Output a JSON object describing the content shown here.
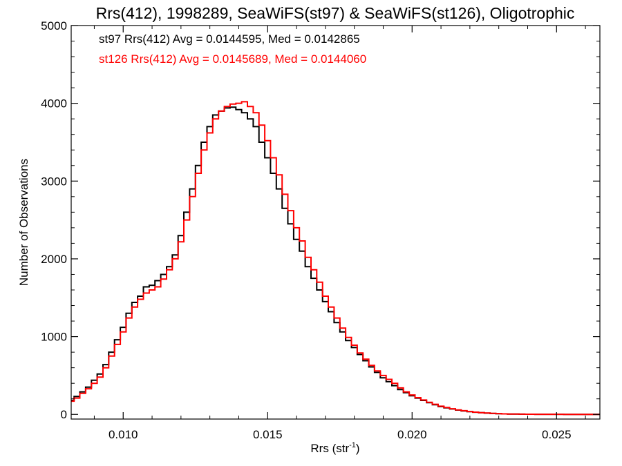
{
  "chart_data": {
    "type": "line",
    "title": "Rrs(412), 1998289, SeaWiFS(st97) & SeaWiFS(st126), Oligotrophic",
    "xlabel": "Rrs (str",
    "xlabel_sup": "-1",
    "xlabel_close": ")",
    "ylabel": "Number of Observations",
    "xlim": [
      0.0082,
      0.0265
    ],
    "ylim": [
      -60,
      5000
    ],
    "x_ticks": [
      0.01,
      0.015,
      0.02,
      0.025
    ],
    "x_tick_labels": [
      "0.010",
      "0.015",
      "0.020",
      "0.025"
    ],
    "y_ticks": [
      0,
      1000,
      2000,
      3000,
      4000,
      5000
    ],
    "y_tick_labels": [
      "0",
      "1000",
      "2000",
      "3000",
      "4000",
      "5000"
    ],
    "annotations": [
      {
        "text": "st97 Rrs(412) Avg = 0.0144595, Med = 0.0142865",
        "color": "#000000"
      },
      {
        "text": "st126 Rrs(412) Avg = 0.0145689, Med = 0.0144060",
        "color": "#ff0000"
      }
    ],
    "series": [
      {
        "color": "#000000",
        "points": [
          [
            0.0082,
            180
          ],
          [
            0.0084,
            230
          ],
          [
            0.0086,
            290
          ],
          [
            0.0088,
            350
          ],
          [
            0.009,
            440
          ],
          [
            0.0092,
            520
          ],
          [
            0.0094,
            640
          ],
          [
            0.0096,
            800
          ],
          [
            0.0098,
            960
          ],
          [
            0.01,
            1120
          ],
          [
            0.0102,
            1300
          ],
          [
            0.0104,
            1440
          ],
          [
            0.0106,
            1520
          ],
          [
            0.0108,
            1640
          ],
          [
            0.011,
            1660
          ],
          [
            0.0112,
            1720
          ],
          [
            0.0114,
            1800
          ],
          [
            0.0116,
            1900
          ],
          [
            0.0118,
            2050
          ],
          [
            0.012,
            2300
          ],
          [
            0.0122,
            2600
          ],
          [
            0.0124,
            2900
          ],
          [
            0.0126,
            3200
          ],
          [
            0.0128,
            3500
          ],
          [
            0.013,
            3700
          ],
          [
            0.0132,
            3850
          ],
          [
            0.0134,
            3900
          ],
          [
            0.0136,
            3940
          ],
          [
            0.0138,
            3950
          ],
          [
            0.014,
            3920
          ],
          [
            0.0142,
            3880
          ],
          [
            0.0144,
            3800
          ],
          [
            0.0146,
            3700
          ],
          [
            0.0148,
            3500
          ],
          [
            0.015,
            3300
          ],
          [
            0.0152,
            3100
          ],
          [
            0.0154,
            2900
          ],
          [
            0.0156,
            2650
          ],
          [
            0.0158,
            2450
          ],
          [
            0.016,
            2250
          ],
          [
            0.0162,
            2100
          ],
          [
            0.0164,
            1900
          ],
          [
            0.0166,
            1750
          ],
          [
            0.0168,
            1600
          ],
          [
            0.017,
            1450
          ],
          [
            0.0172,
            1320
          ],
          [
            0.0174,
            1180
          ],
          [
            0.0176,
            1060
          ],
          [
            0.0178,
            950
          ],
          [
            0.018,
            860
          ],
          [
            0.0182,
            770
          ],
          [
            0.0184,
            690
          ],
          [
            0.0186,
            610
          ],
          [
            0.0188,
            540
          ],
          [
            0.019,
            470
          ],
          [
            0.0192,
            420
          ],
          [
            0.0194,
            370
          ],
          [
            0.0196,
            320
          ],
          [
            0.0198,
            280
          ],
          [
            0.02,
            240
          ],
          [
            0.0202,
            210
          ],
          [
            0.0204,
            180
          ],
          [
            0.0206,
            150
          ],
          [
            0.0208,
            125
          ],
          [
            0.021,
            100
          ],
          [
            0.0212,
            85
          ],
          [
            0.0214,
            70
          ],
          [
            0.0216,
            55
          ],
          [
            0.0218,
            45
          ],
          [
            0.022,
            35
          ],
          [
            0.0222,
            28
          ],
          [
            0.0224,
            22
          ],
          [
            0.0226,
            16
          ],
          [
            0.0228,
            12
          ],
          [
            0.023,
            9
          ],
          [
            0.0232,
            7
          ],
          [
            0.0234,
            5
          ],
          [
            0.0236,
            4
          ],
          [
            0.0238,
            3
          ],
          [
            0.024,
            2
          ],
          [
            0.0245,
            1
          ],
          [
            0.025,
            1
          ],
          [
            0.0255,
            0
          ],
          [
            0.026,
            0
          ],
          [
            0.0265,
            0
          ]
        ]
      },
      {
        "color": "#ff0000",
        "points": [
          [
            0.0082,
            170
          ],
          [
            0.0084,
            210
          ],
          [
            0.0086,
            270
          ],
          [
            0.0088,
            330
          ],
          [
            0.009,
            400
          ],
          [
            0.0092,
            480
          ],
          [
            0.0094,
            600
          ],
          [
            0.0096,
            750
          ],
          [
            0.0098,
            900
          ],
          [
            0.01,
            1060
          ],
          [
            0.0102,
            1240
          ],
          [
            0.0104,
            1380
          ],
          [
            0.0106,
            1480
          ],
          [
            0.0108,
            1560
          ],
          [
            0.011,
            1600
          ],
          [
            0.0112,
            1640
          ],
          [
            0.0114,
            1740
          ],
          [
            0.0116,
            1860
          ],
          [
            0.0118,
            2000
          ],
          [
            0.012,
            2220
          ],
          [
            0.0122,
            2500
          ],
          [
            0.0124,
            2800
          ],
          [
            0.0126,
            3100
          ],
          [
            0.0128,
            3400
          ],
          [
            0.013,
            3620
          ],
          [
            0.0132,
            3800
          ],
          [
            0.0134,
            3900
          ],
          [
            0.0136,
            3960
          ],
          [
            0.0138,
            3990
          ],
          [
            0.014,
            4000
          ],
          [
            0.0142,
            4020
          ],
          [
            0.0144,
            3960
          ],
          [
            0.0146,
            3880
          ],
          [
            0.0148,
            3720
          ],
          [
            0.015,
            3520
          ],
          [
            0.0152,
            3300
          ],
          [
            0.0154,
            3080
          ],
          [
            0.0156,
            2830
          ],
          [
            0.0158,
            2620
          ],
          [
            0.016,
            2400
          ],
          [
            0.0162,
            2230
          ],
          [
            0.0164,
            2020
          ],
          [
            0.0166,
            1860
          ],
          [
            0.0168,
            1700
          ],
          [
            0.017,
            1520
          ],
          [
            0.0172,
            1380
          ],
          [
            0.0174,
            1240
          ],
          [
            0.0176,
            1110
          ],
          [
            0.0178,
            990
          ],
          [
            0.018,
            890
          ],
          [
            0.0182,
            790
          ],
          [
            0.0184,
            710
          ],
          [
            0.0186,
            630
          ],
          [
            0.0188,
            560
          ],
          [
            0.019,
            500
          ],
          [
            0.0192,
            450
          ],
          [
            0.0194,
            400
          ],
          [
            0.0196,
            340
          ],
          [
            0.0198,
            290
          ],
          [
            0.02,
            250
          ],
          [
            0.0202,
            215
          ],
          [
            0.0204,
            185
          ],
          [
            0.0206,
            155
          ],
          [
            0.0208,
            130
          ],
          [
            0.021,
            105
          ],
          [
            0.0212,
            88
          ],
          [
            0.0214,
            72
          ],
          [
            0.0216,
            58
          ],
          [
            0.0218,
            47
          ],
          [
            0.022,
            37
          ],
          [
            0.0222,
            29
          ],
          [
            0.0224,
            22
          ],
          [
            0.0226,
            17
          ],
          [
            0.0228,
            13
          ],
          [
            0.023,
            10
          ],
          [
            0.0232,
            7
          ],
          [
            0.0234,
            5
          ],
          [
            0.0236,
            4
          ],
          [
            0.0238,
            3
          ],
          [
            0.024,
            2
          ],
          [
            0.0245,
            1
          ],
          [
            0.025,
            1
          ],
          [
            0.0255,
            0
          ],
          [
            0.026,
            0
          ],
          [
            0.0265,
            0
          ]
        ]
      }
    ],
    "grid": false,
    "legend": "none"
  }
}
